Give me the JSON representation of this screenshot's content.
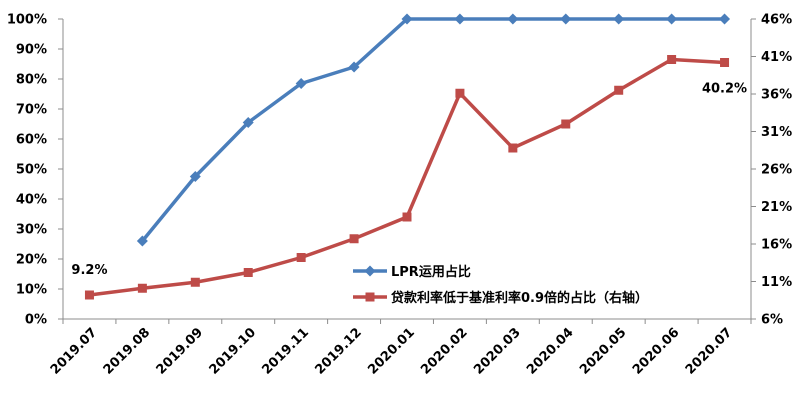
{
  "chart_data": {
    "type": "line",
    "categories": [
      "2019.07",
      "2019.08",
      "2019.09",
      "2019.10",
      "2019.11",
      "2019.12",
      "2020.01",
      "2020.02",
      "2020.03",
      "2020.04",
      "2020.05",
      "2020.06",
      "2020.07"
    ],
    "series": [
      {
        "name": "LPR运用占比",
        "axis": "left",
        "color": "#4a7ebb",
        "marker": "diamond",
        "values": [
          null,
          26,
          47.5,
          65.5,
          78.5,
          84,
          100,
          100,
          100,
          100,
          100,
          100,
          100
        ]
      },
      {
        "name": "贷款利率低于基准利率0.9倍的占比（右轴）",
        "axis": "right",
        "color": "#be4b48",
        "marker": "square",
        "values": [
          9.2,
          10.1,
          10.9,
          12.2,
          14.2,
          16.7,
          19.6,
          36.1,
          28.8,
          32.0,
          36.5,
          40.6,
          40.2
        ]
      }
    ],
    "left_axis": {
      "ticks": [
        "0%",
        "10%",
        "20%",
        "30%",
        "40%",
        "50%",
        "60%",
        "70%",
        "80%",
        "90%",
        "100%"
      ],
      "range": [
        0,
        100
      ]
    },
    "right_axis": {
      "ticks": [
        "6%",
        "11%",
        "16%",
        "21%",
        "26%",
        "31%",
        "36%",
        "41%",
        "46%"
      ],
      "range": [
        6,
        46
      ]
    },
    "annotations": [
      {
        "text": "9.2%",
        "series": 1,
        "index": 0,
        "placement": "above"
      },
      {
        "text": "40.2%",
        "series": 1,
        "index": 12,
        "placement": "below"
      }
    ],
    "legend": {
      "placement": "center-right"
    },
    "grid": false
  }
}
